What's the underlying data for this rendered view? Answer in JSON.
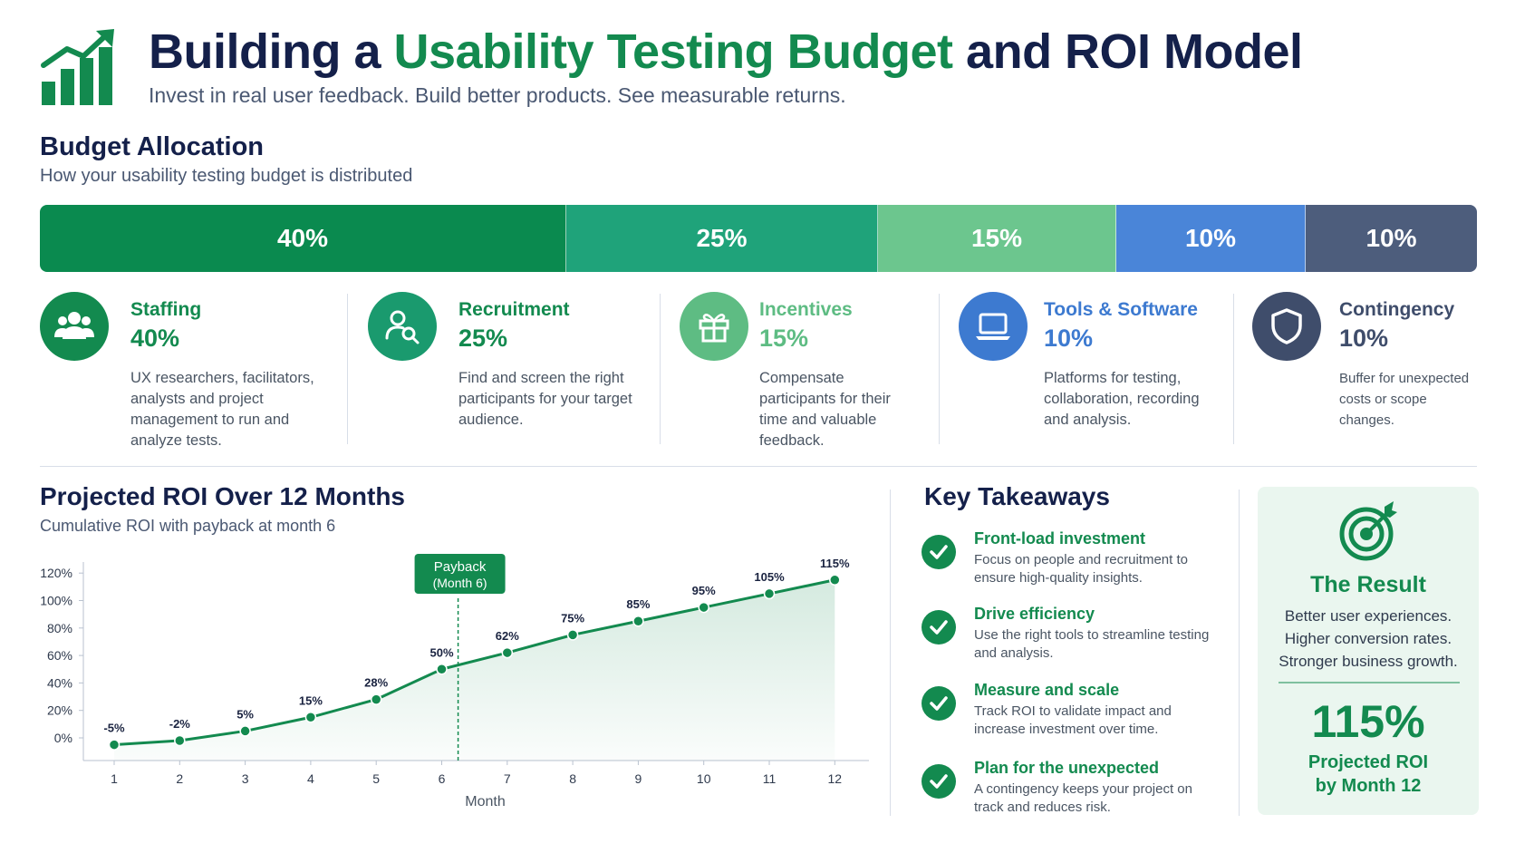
{
  "header": {
    "title_pre": "Building a ",
    "title_accent": "Usability Testing Budget",
    "title_post": " and ROI Model",
    "subtitle": "Invest in real user feedback. Build better products. See measurable returns."
  },
  "budget": {
    "title": "Budget Allocation",
    "subtitle": "How your usability testing budget is distributed",
    "segments": [
      {
        "label": "40%",
        "value": 40,
        "color": "#0a8a4f"
      },
      {
        "label": "25%",
        "value": 25,
        "color": "#1fa37a"
      },
      {
        "label": "15%",
        "value": 15,
        "color": "#6cc68e"
      },
      {
        "label": "10%",
        "value": 10,
        "color": "#4a85d8"
      },
      {
        "label": "10%",
        "value": 10,
        "color": "#4d5d7c"
      }
    ],
    "cards": [
      {
        "icon": "users-icon",
        "name": "Staffing",
        "pct": "40%",
        "color": "#138a4f",
        "desc": "UX researchers, facilitators, analysts and project management to run and analyze tests."
      },
      {
        "icon": "user-search-icon",
        "name": "Recruitment",
        "pct": "25%",
        "color": "#1a9a6e",
        "desc": "Find and screen the right participants for your target audience."
      },
      {
        "icon": "gift-icon",
        "name": "Incentives",
        "pct": "15%",
        "color": "#5ebc83",
        "desc": "Compensate participants for their time and valuable feedback."
      },
      {
        "icon": "laptop-icon",
        "name": "Tools & Software",
        "pct": "10%",
        "color": "#3d7ad0",
        "desc": "Platforms for testing, collaboration, recording and analysis."
      },
      {
        "icon": "shield-icon",
        "name": "Contingency",
        "pct": "10%",
        "color": "#3f4d6b",
        "desc": "Buffer for unexpected costs or scope changes."
      }
    ]
  },
  "roi": {
    "title": "Projected ROI Over 12 Months",
    "subtitle": "Cumulative ROI with payback at month 6"
  },
  "chart_data": {
    "type": "area",
    "title": "Projected ROI Over 12 Months",
    "subtitle": "Cumulative ROI with payback at month 6",
    "xlabel": "Month",
    "ylabel": "",
    "x": [
      1,
      2,
      3,
      4,
      5,
      6,
      7,
      8,
      9,
      10,
      11,
      12
    ],
    "values": [
      -5,
      -2,
      5,
      15,
      28,
      50,
      62,
      75,
      85,
      95,
      105,
      115
    ],
    "data_labels": [
      "-5%",
      "-2%",
      "5%",
      "15%",
      "28%",
      "50%",
      "62%",
      "75%",
      "85%",
      "95%",
      "105%",
      "115%"
    ],
    "ylim": [
      0,
      120
    ],
    "yticks": [
      "0%",
      "20%",
      "40%",
      "60%",
      "80%",
      "100%",
      "120%"
    ],
    "ytick_values": [
      0,
      20,
      40,
      60,
      80,
      100,
      120
    ],
    "xticks": [
      "1",
      "2",
      "3",
      "4",
      "5",
      "6",
      "7",
      "8",
      "9",
      "10",
      "11",
      "12"
    ],
    "annotation": {
      "line1": "Payback",
      "line2": "(Month 6)",
      "x": 6.25
    },
    "grid": false,
    "color": "#138a4f"
  },
  "takeaways": {
    "title": "Key Takeaways",
    "items": [
      {
        "title": "Front-load investment",
        "desc": "Focus on people and recruitment to ensure high-quality insights."
      },
      {
        "title": "Drive efficiency",
        "desc": "Use the right tools to streamline testing and analysis."
      },
      {
        "title": "Measure and scale",
        "desc": "Track ROI to validate impact and increase investment over time."
      },
      {
        "title": "Plan for the unexpected",
        "desc": "A contingency keeps your project on track and reduces risk."
      }
    ]
  },
  "result": {
    "title": "The Result",
    "line1": "Better user experiences.",
    "line2": "Higher conversion rates.",
    "line3": "Stronger business growth.",
    "big": "115%",
    "cap1": "Projected ROI",
    "cap2": "by Month 12"
  }
}
